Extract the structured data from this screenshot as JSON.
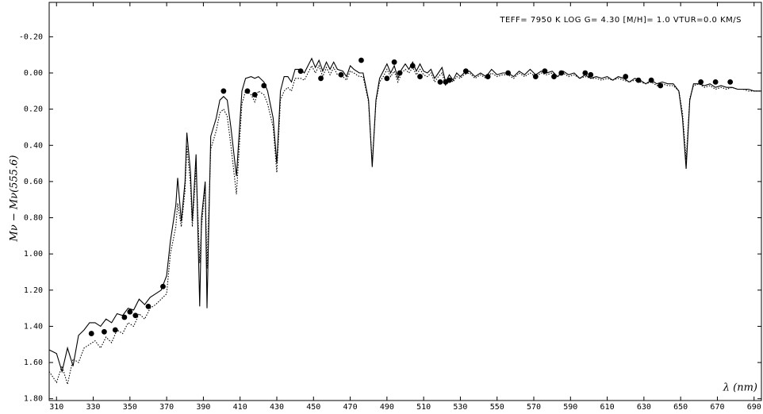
{
  "chart_data": {
    "type": "line",
    "annotation": "TEFF= 7950 K  LOG G= 4.30 [M/H]= 1.0  VTUR=0.0 KM/S",
    "x_label": "λ (nm)",
    "y_label": "Mν − Mν(555.6)",
    "xlim": [
      306,
      694
    ],
    "ylim": [
      -0.39,
      1.81
    ],
    "y_inverted": true,
    "xticks": [
      310,
      330,
      350,
      370,
      390,
      410,
      430,
      450,
      470,
      490,
      510,
      530,
      550,
      570,
      590,
      610,
      630,
      650,
      670,
      690
    ],
    "yticks": [
      {
        "value": -0.2,
        "label": "-0.20"
      },
      {
        "value": 0,
        "label": "0.00"
      },
      {
        "value": 0.2,
        "label": "0.20"
      },
      {
        "value": 0.4,
        "label": "0.40"
      },
      {
        "value": 0.6,
        "label": "0.60"
      },
      {
        "value": 0.8,
        "label": "0.80"
      },
      {
        "value": 1.0,
        "label": "1.00"
      },
      {
        "value": 1.2,
        "label": "1.20"
      },
      {
        "value": 1.4,
        "label": "1.40"
      },
      {
        "value": 1.6,
        "label": "1.60"
      },
      {
        "value": 1.8,
        "label": "1.80"
      }
    ],
    "x": [
      306,
      310,
      313,
      316,
      319,
      322,
      325,
      328,
      331,
      334,
      337,
      340,
      343,
      346,
      349,
      352,
      355,
      358,
      361,
      364,
      367,
      370,
      372,
      375,
      376,
      378,
      380,
      381,
      383,
      384,
      386,
      388,
      389,
      391,
      392,
      394,
      397,
      399,
      401,
      403,
      405,
      408,
      411,
      413,
      416,
      418,
      420,
      423,
      425,
      428,
      430,
      432,
      434,
      436,
      438,
      440,
      443,
      445,
      447,
      449,
      451,
      453,
      455,
      457,
      459,
      461,
      463,
      466,
      468,
      470,
      472,
      475,
      477,
      480,
      482,
      484,
      486,
      488,
      490,
      492,
      494,
      496,
      498,
      500,
      502,
      504,
      506,
      508,
      510,
      512,
      514,
      516,
      518,
      520,
      522,
      524,
      526,
      528,
      530,
      532,
      535,
      538,
      541,
      544,
      547,
      550,
      553,
      556,
      559,
      562,
      565,
      568,
      571,
      574,
      577,
      580,
      583,
      586,
      589,
      592,
      595,
      598,
      601,
      604,
      607,
      610,
      613,
      616,
      619,
      622,
      625,
      628,
      631,
      634,
      637,
      640,
      643,
      646,
      649,
      651,
      653,
      655,
      657,
      660,
      663,
      666,
      669,
      672,
      675,
      678,
      681,
      684,
      687,
      690,
      694
    ],
    "series": [
      {
        "color": "#000000",
        "style": "solid",
        "values": [
          1.53,
          1.55,
          1.65,
          1.52,
          1.62,
          1.45,
          1.42,
          1.38,
          1.38,
          1.4,
          1.36,
          1.38,
          1.33,
          1.34,
          1.3,
          1.31,
          1.25,
          1.28,
          1.24,
          1.22,
          1.2,
          1.12,
          0.93,
          0.73,
          0.58,
          0.82,
          0.6,
          0.33,
          0.55,
          0.82,
          0.45,
          1.29,
          0.8,
          0.6,
          1.3,
          0.35,
          0.25,
          0.15,
          0.13,
          0.15,
          0.3,
          0.57,
          0.1,
          0.03,
          0.02,
          0.03,
          0.02,
          0.05,
          0.1,
          0.25,
          0.5,
          0.1,
          0.02,
          0.02,
          0.05,
          -0.02,
          -0.02,
          0.0,
          -0.04,
          -0.08,
          -0.03,
          -0.07,
          -0.01,
          -0.06,
          -0.02,
          -0.06,
          -0.02,
          -0.01,
          0.02,
          -0.04,
          -0.02,
          0.0,
          0.0,
          0.15,
          0.52,
          0.15,
          0.03,
          -0.01,
          -0.05,
          0.0,
          -0.04,
          0.03,
          -0.02,
          -0.05,
          -0.02,
          -0.06,
          -0.01,
          -0.05,
          -0.01,
          0.0,
          -0.02,
          0.03,
          0.0,
          -0.03,
          0.05,
          0.01,
          0.04,
          0.0,
          0.02,
          0.0,
          -0.01,
          0.02,
          0.0,
          0.02,
          -0.02,
          0.01,
          0.0,
          0.0,
          0.02,
          -0.01,
          0.01,
          -0.02,
          0.01,
          -0.01,
          0.0,
          -0.01,
          0.02,
          -0.01,
          0.01,
          0.0,
          0.03,
          0.01,
          0.03,
          0.02,
          0.03,
          0.02,
          0.04,
          0.02,
          0.03,
          0.05,
          0.03,
          0.04,
          0.06,
          0.04,
          0.06,
          0.05,
          0.06,
          0.06,
          0.1,
          0.25,
          0.53,
          0.15,
          0.06,
          0.06,
          0.07,
          0.06,
          0.08,
          0.07,
          0.08,
          0.08,
          0.09,
          0.09,
          0.09,
          0.1,
          0.1
        ]
      },
      {
        "color": "#000000",
        "style": "dotted",
        "values": [
          1.65,
          1.71,
          1.62,
          1.72,
          1.58,
          1.6,
          1.52,
          1.5,
          1.48,
          1.52,
          1.46,
          1.49,
          1.42,
          1.44,
          1.38,
          1.4,
          1.33,
          1.36,
          1.3,
          1.28,
          1.25,
          1.22,
          1.0,
          0.85,
          0.72,
          0.85,
          0.65,
          0.4,
          0.62,
          0.85,
          0.52,
          1.05,
          0.85,
          0.62,
          1.08,
          0.42,
          0.32,
          0.22,
          0.2,
          0.24,
          0.4,
          0.67,
          0.17,
          0.1,
          0.12,
          0.16,
          0.1,
          0.12,
          0.17,
          0.3,
          0.55,
          0.15,
          0.1,
          0.08,
          0.1,
          0.03,
          0.03,
          0.04,
          0.0,
          -0.04,
          0.0,
          -0.04,
          0.02,
          -0.03,
          0.01,
          -0.03,
          0.01,
          0.02,
          0.04,
          -0.01,
          0.0,
          0.02,
          0.02,
          0.16,
          0.5,
          0.16,
          0.05,
          0.02,
          -0.02,
          0.02,
          -0.01,
          0.05,
          0.0,
          -0.02,
          0.0,
          -0.03,
          0.01,
          -0.02,
          0.01,
          0.02,
          0.0,
          0.05,
          0.02,
          0.0,
          0.07,
          0.03,
          0.05,
          0.02,
          0.03,
          0.01,
          0.0,
          0.03,
          0.01,
          0.03,
          0.0,
          0.02,
          0.01,
          0.01,
          0.03,
          0.0,
          0.02,
          0.0,
          0.02,
          0.0,
          0.01,
          0.0,
          0.02,
          0.0,
          0.02,
          0.01,
          0.03,
          0.02,
          0.03,
          0.03,
          0.04,
          0.03,
          0.04,
          0.03,
          0.04,
          0.05,
          0.04,
          0.05,
          0.06,
          0.05,
          0.07,
          0.06,
          0.07,
          0.07,
          0.1,
          0.22,
          0.48,
          0.14,
          0.07,
          0.06,
          0.08,
          0.07,
          0.09,
          0.08,
          0.09,
          0.08,
          0.09,
          0.09,
          0.1,
          0.1,
          0.1
        ]
      }
    ],
    "points": {
      "color": "#000000",
      "x": [
        329,
        336,
        342,
        347,
        350,
        353,
        360,
        368,
        401,
        414,
        418,
        423,
        443,
        454,
        465,
        476,
        490,
        494,
        497,
        504,
        508,
        519,
        522,
        524,
        533,
        545,
        556,
        571,
        576,
        581,
        585,
        598,
        601,
        620,
        627,
        634,
        639,
        661,
        669,
        677
      ],
      "values": [
        1.44,
        1.43,
        1.42,
        1.35,
        1.32,
        1.34,
        1.29,
        1.18,
        0.1,
        0.1,
        0.12,
        0.07,
        -0.01,
        0.03,
        0.01,
        -0.07,
        0.03,
        -0.06,
        0.0,
        -0.04,
        0.02,
        0.05,
        0.05,
        0.04,
        -0.01,
        0.02,
        0.0,
        0.02,
        -0.01,
        0.02,
        0.0,
        0.0,
        0.01,
        0.02,
        0.04,
        0.04,
        0.07,
        0.05,
        0.05,
        0.05
      ]
    }
  }
}
